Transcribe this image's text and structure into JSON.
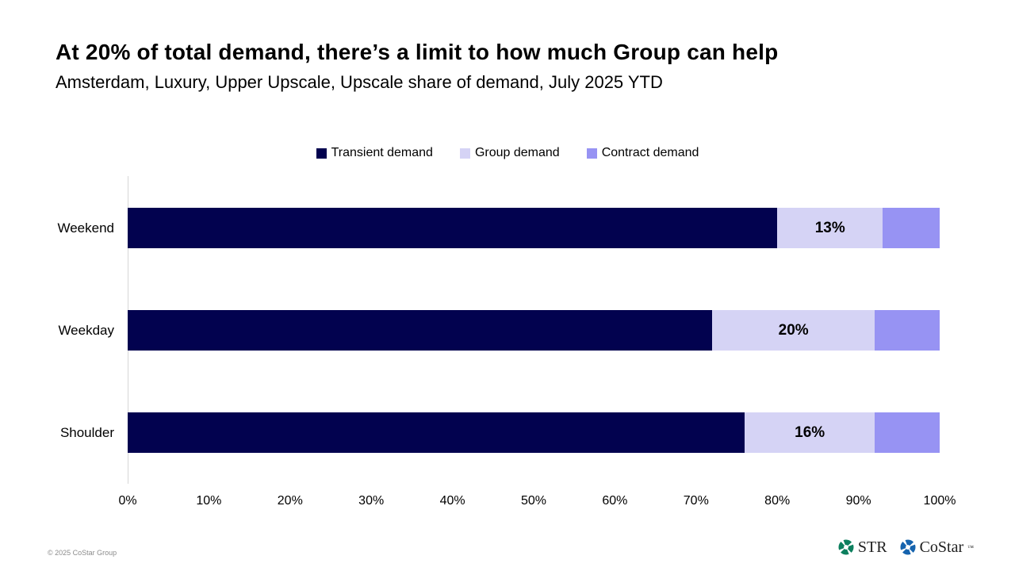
{
  "title": "At 20% of total demand, there’s a limit to how much Group can help",
  "subtitle": "Amsterdam, Luxury, Upper Upscale, Upscale share of demand, July 2025 YTD",
  "chart_data": {
    "type": "bar",
    "orientation": "horizontal",
    "stacked": true,
    "categories": [
      "Weekend",
      "Weekday",
      "Shoulder"
    ],
    "series": [
      {
        "name": "Transient demand",
        "color": "#02024f",
        "values": [
          80,
          72,
          76
        ],
        "labels": [
          "",
          "",
          ""
        ]
      },
      {
        "name": "Group demand",
        "color": "#d5d3f5",
        "values": [
          13,
          20,
          16
        ],
        "labels": [
          "13%",
          "20%",
          "16%"
        ]
      },
      {
        "name": "Contract demand",
        "color": "#9793f3",
        "values": [
          7,
          8,
          8
        ],
        "labels": [
          "",
          "",
          ""
        ]
      }
    ],
    "xlim": [
      0,
      100
    ],
    "x_ticks": [
      "0%",
      "10%",
      "20%",
      "30%",
      "40%",
      "50%",
      "60%",
      "70%",
      "80%",
      "90%",
      "100%"
    ],
    "legend_position": "top",
    "grid": false,
    "axis_line_color": "#d6d6d6"
  },
  "footer": {
    "copyright": "© 2025 CoStar Group",
    "logos": {
      "str": {
        "name": "STR",
        "icon_color": "#0c7f5e"
      },
      "costar": {
        "name": "CoStar",
        "trademark": "™",
        "icon_color": "#1563ae"
      }
    }
  }
}
